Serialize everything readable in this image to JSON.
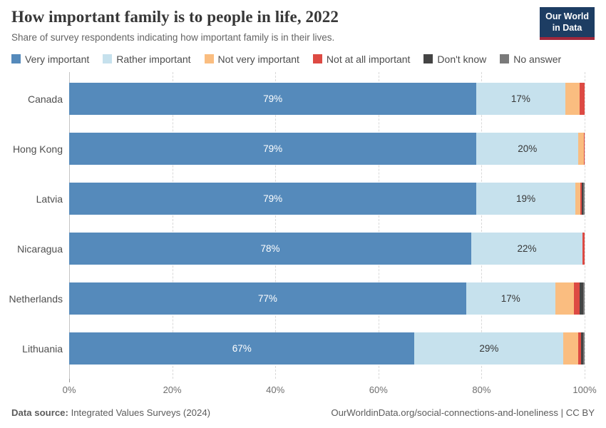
{
  "header": {
    "title": "How important family is to people in life, 2022",
    "subtitle": "Share of survey respondents indicating how important family is in their lives.",
    "logo": {
      "line1": "Our World",
      "line2": "in Data"
    }
  },
  "chart_data": {
    "type": "bar",
    "orientation": "horizontal",
    "stacked": true,
    "title": "How important family is to people in life, 2022",
    "xlim": [
      0,
      100
    ],
    "xtick_values": [
      0,
      20,
      40,
      60,
      80,
      100
    ],
    "xtick_labels": [
      "0%",
      "20%",
      "40%",
      "60%",
      "80%",
      "100%"
    ],
    "grid": "vertical-dashed",
    "legend_position": "top",
    "categories": [
      "Canada",
      "Hong Kong",
      "Latvia",
      "Nicaragua",
      "Netherlands",
      "Lithuania"
    ],
    "series": [
      {
        "name": "Very important",
        "color": "#558abb",
        "label_color": "#ffffff",
        "values": [
          79,
          79,
          79,
          78,
          77,
          67
        ],
        "value_labels": [
          "79%",
          "79%",
          "79%",
          "78%",
          "77%",
          "67%"
        ]
      },
      {
        "name": "Rather important",
        "color": "#c6e1ed",
        "label_color": "#373737",
        "values": [
          17.2,
          19.8,
          19.2,
          21.6,
          17.3,
          28.9
        ],
        "value_labels": [
          "17%",
          "20%",
          "19%",
          "22%",
          "17%",
          "29%"
        ]
      },
      {
        "name": "Not very important",
        "color": "#fabd80",
        "values": [
          2.8,
          1.0,
          1.0,
          0,
          3.6,
          2.9
        ]
      },
      {
        "name": "Not at all important",
        "color": "#dd4a43",
        "values": [
          1.0,
          0.2,
          0.25,
          0.4,
          1.2,
          0.45
        ]
      },
      {
        "name": "Don't know",
        "color": "#444444",
        "values": [
          0,
          0,
          0.3,
          0,
          0.6,
          0.45
        ]
      },
      {
        "name": "No answer",
        "color": "#7a7a7a",
        "values": [
          0,
          0,
          0.25,
          0,
          0.3,
          0.3
        ]
      }
    ]
  },
  "footer": {
    "source_label": "Data source:",
    "source_text": "Integrated Values Surveys (2024)",
    "credit": "OurWorldinData.org/social-connections-and-loneliness | CC BY"
  }
}
